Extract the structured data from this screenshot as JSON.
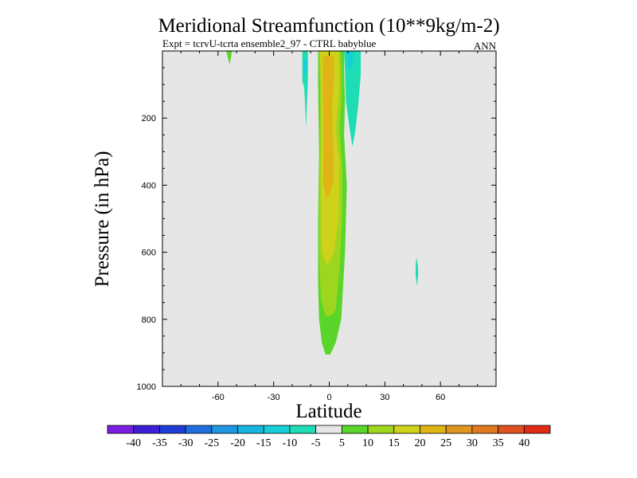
{
  "chart_data": {
    "type": "contour",
    "title": "Meridional Streamfunction (10**9kg/m-2)",
    "subtitle": "Expt = tcrvU-tcrta ensemble2_97 - CTRL babyblue",
    "season": "ANN",
    "xlabel": "Latitude",
    "ylabel": "Pressure (in hPa)",
    "xlim": [
      -90,
      90
    ],
    "ylim": [
      1000,
      0
    ],
    "x_ticks": [
      -60,
      -30,
      0,
      30,
      60
    ],
    "x_tick_labels": [
      "-60",
      "-30",
      "0",
      "30",
      "60"
    ],
    "y_ticks": [
      200,
      400,
      600,
      800,
      1000
    ],
    "y_tick_labels": [
      "200",
      "400",
      "600",
      "800",
      "1000"
    ],
    "background_color": "#e6e6e6",
    "contour_levels": [
      -40,
      -35,
      -30,
      -25,
      -20,
      -15,
      -10,
      -5,
      5,
      10,
      15,
      20,
      25,
      30,
      35,
      40
    ],
    "colorbar_labels": [
      "-40",
      "-35",
      "-30",
      "-25",
      "-20",
      "-15",
      "-10",
      "-5",
      "5",
      "10",
      "15",
      "20",
      "25",
      "30",
      "35",
      "40"
    ],
    "colorbar_colors": [
      "#7a1ee0",
      "#3d1ed6",
      "#1e3cd6",
      "#1e6ee0",
      "#1e96e0",
      "#16b6e0",
      "#16cfd8",
      "#1edcb4",
      "#e6e6e6",
      "#5ad62a",
      "#9ed61e",
      "#cfd21a",
      "#e0b416",
      "#e0961e",
      "#e07a1e",
      "#e0501e",
      "#e02a14"
    ],
    "features": [
      {
        "name": "tropical-positive-cell",
        "levels": [
          5,
          10,
          15,
          20,
          25
        ],
        "lat_range": [
          -6,
          9
        ],
        "pressure_range": [
          10,
          910
        ],
        "max_value": 25
      },
      {
        "name": "southern-negative-cell",
        "levels": [
          -5,
          -10
        ],
        "lat_range": [
          -14,
          -11
        ],
        "pressure_range": [
          10,
          230
        ],
        "max_value": -10
      },
      {
        "name": "northern-negative-cell",
        "levels": [
          -5,
          -10
        ],
        "lat_range": [
          8,
          17
        ],
        "pressure_range": [
          10,
          280
        ],
        "max_value": -10
      },
      {
        "name": "small-positive-blob",
        "levels": [
          5
        ],
        "lat_range": [
          -55,
          -53
        ],
        "pressure_range": [
          10,
          40
        ],
        "max_value": 5
      },
      {
        "name": "small-negative-blob",
        "levels": [
          -5
        ],
        "lat_range": [
          46,
          48
        ],
        "pressure_range": [
          620,
          700
        ],
        "max_value": -5
      }
    ]
  }
}
